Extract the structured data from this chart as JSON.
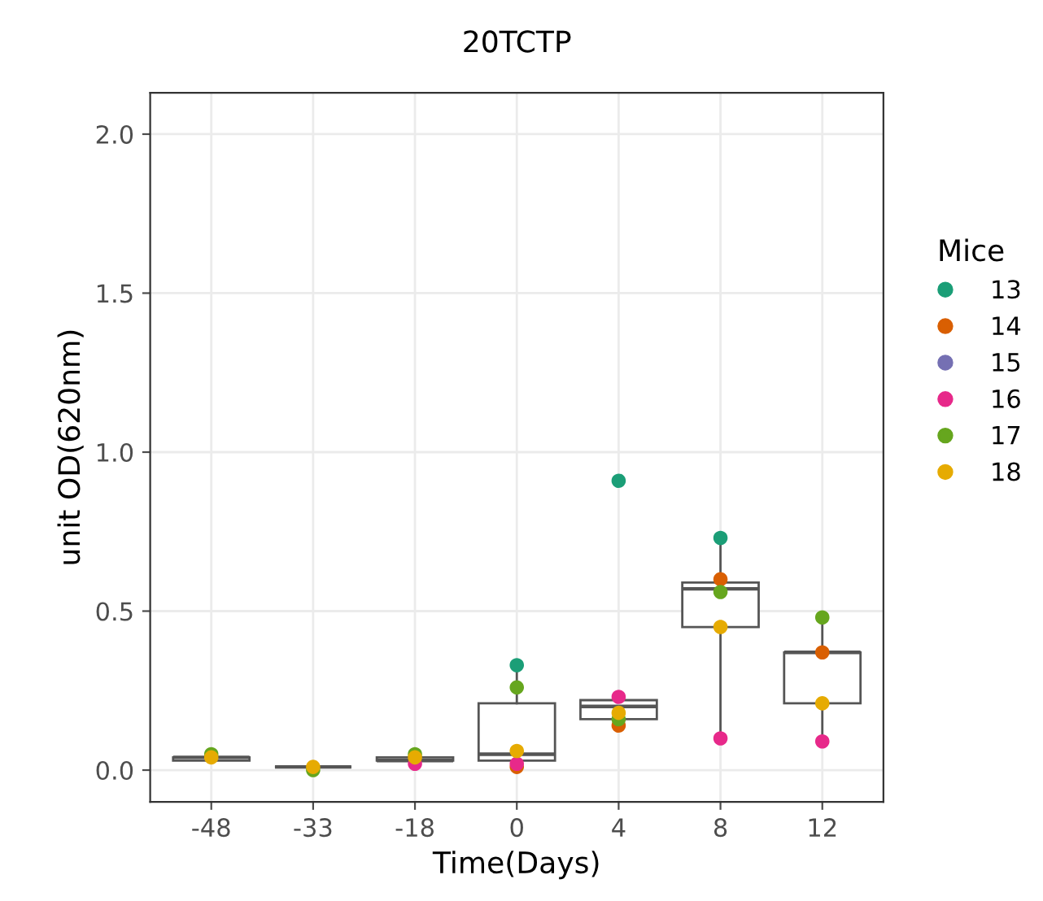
{
  "chart_data": {
    "type": "box",
    "title": "20TCTP",
    "xlabel": "Time(Days)",
    "ylabel": "unit OD(620nm)",
    "legend_title": "Mice",
    "categories": [
      "-48",
      "-33",
      "-18",
      "0",
      "4",
      "8",
      "12"
    ],
    "boxes": [
      {
        "low": 0.03,
        "q1": 0.03,
        "median": 0.04,
        "q3": 0.04,
        "high": 0.05
      },
      {
        "low": 0.0,
        "q1": 0.01,
        "median": 0.01,
        "q3": 0.01,
        "high": 0.01
      },
      {
        "low": 0.02,
        "q1": 0.03,
        "median": 0.03,
        "q3": 0.04,
        "high": 0.05
      },
      {
        "low": 0.01,
        "q1": 0.03,
        "median": 0.05,
        "q3": 0.21,
        "high": 0.33
      },
      {
        "low": 0.14,
        "q1": 0.16,
        "median": 0.2,
        "q3": 0.22,
        "high": 0.23
      },
      {
        "low": 0.1,
        "q1": 0.45,
        "median": 0.57,
        "q3": 0.59,
        "high": 0.73
      },
      {
        "low": 0.09,
        "q1": 0.21,
        "median": 0.37,
        "q3": 0.37,
        "high": 0.48
      }
    ],
    "series": [
      {
        "name": "13",
        "type": "scatter",
        "color": "#1b9e77",
        "x": [
          "-48",
          "-33",
          "-18",
          "0",
          "4",
          "8",
          "12"
        ],
        "values": [
          null,
          null,
          null,
          0.33,
          0.91,
          0.73,
          null
        ]
      },
      {
        "name": "14",
        "type": "scatter",
        "color": "#d95f02",
        "x": [
          "-48",
          "-33",
          "-18",
          "0",
          "4",
          "8",
          "12"
        ],
        "values": [
          null,
          null,
          null,
          0.01,
          0.14,
          0.6,
          0.37
        ]
      },
      {
        "name": "15",
        "type": "scatter",
        "color": "#7570b3",
        "x": [
          "-48",
          "-33",
          "-18",
          "0",
          "4",
          "8",
          "12"
        ],
        "values": [
          null,
          null,
          null,
          null,
          null,
          null,
          null
        ]
      },
      {
        "name": "16",
        "type": "scatter",
        "color": "#e7298a",
        "x": [
          "-48",
          "-33",
          "-18",
          "0",
          "4",
          "8",
          "12"
        ],
        "values": [
          null,
          null,
          0.02,
          0.02,
          0.23,
          0.1,
          0.09
        ]
      },
      {
        "name": "17",
        "type": "scatter",
        "color": "#66a61e",
        "x": [
          "-48",
          "-33",
          "-18",
          "0",
          "4",
          "8",
          "12"
        ],
        "values": [
          0.05,
          0.0,
          0.05,
          0.26,
          0.16,
          0.56,
          0.48
        ]
      },
      {
        "name": "18",
        "type": "scatter",
        "color": "#e6ab02",
        "x": [
          "-48",
          "-33",
          "-18",
          "0",
          "4",
          "8",
          "12"
        ],
        "values": [
          0.04,
          0.01,
          0.04,
          0.06,
          0.18,
          0.45,
          0.21
        ]
      }
    ],
    "ylim": [
      -0.1,
      2.13
    ],
    "yticks": [
      {
        "value": 0,
        "label": "0.0"
      },
      {
        "value": 0.5,
        "label": "0.5"
      },
      {
        "value": 1,
        "label": "1.0"
      },
      {
        "value": 1.5,
        "label": "1.5"
      },
      {
        "value": 2,
        "label": "2.0"
      }
    ],
    "color": "#555555",
    "grid": true,
    "legend": "right",
    "marker": "circle"
  }
}
